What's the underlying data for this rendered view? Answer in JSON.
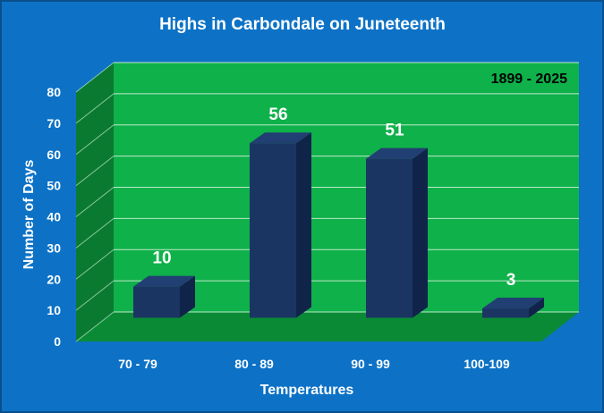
{
  "chart_data": {
    "type": "bar",
    "title": "Highs in Carbondale on Juneteenth",
    "annotation": "1899 - 2025",
    "xlabel": "Temperatures",
    "ylabel": "Number of Days",
    "categories": [
      "70 - 79",
      "80 - 89",
      "90 - 99",
      "100-109"
    ],
    "values": [
      10,
      56,
      51,
      3
    ],
    "data_labels": [
      "10",
      "56",
      "51",
      "3"
    ],
    "ylim": [
      0,
      80
    ],
    "yticks": [
      "0",
      "10",
      "20",
      "30",
      "40",
      "50",
      "60",
      "70",
      "80"
    ],
    "grid": true,
    "legend": "none",
    "colors": {
      "background": "#0d72c6",
      "wall": "#0fb14a",
      "side_wall": "#0b7a31",
      "floor": "#0a8a35",
      "bar_front": "#1b3563",
      "bar_top": "#223f73",
      "bar_side": "#10244a",
      "grid": "#bfe9c9",
      "text": "#ffffff",
      "annotation_text": "#000000"
    }
  }
}
